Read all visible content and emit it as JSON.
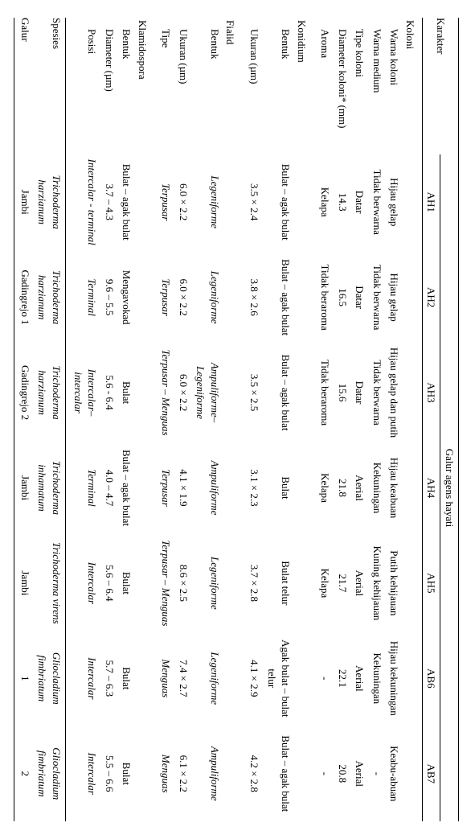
{
  "header": {
    "karakter": "Karakter",
    "group": "Galur agens hayati",
    "cols": [
      "AH1",
      "AH2",
      "AH3",
      "AH4",
      "AH5",
      "AB6",
      "AB7"
    ]
  },
  "sections": {
    "koloni": "Koloni",
    "konidium": "Konidium",
    "fialid": "Fialid",
    "klamidospora": "Klamidospora"
  },
  "rows": {
    "warna_koloni": {
      "label": "Warna koloni",
      "v": [
        "Hijau gelap",
        "Hijau gelap",
        "Hijau gelap dan putih",
        "Hijau keabuan",
        "Putih kehijauan",
        "Hijau kekuningan",
        "Keabu-abuan"
      ]
    },
    "warna_medium": {
      "label": "Warna medium",
      "v": [
        "Tidak berwarna",
        "Tidak berwarna",
        "Tidak berwarna",
        "Kekuningan",
        "Kuning kehijauan",
        "Kekuningan",
        "-"
      ]
    },
    "tipe_koloni": {
      "label": "Tipe koloni",
      "v": [
        "Datar",
        "Datar",
        "Datar",
        "Aerial",
        "Aerial",
        "Aerial",
        "Aerial"
      ]
    },
    "diameter_koloni": {
      "label": "Diameter koloni* (mm)",
      "v": [
        "14.3",
        "16.5",
        "15.6",
        "21.8",
        "21.7",
        "22.1",
        "20.8"
      ]
    },
    "aroma": {
      "label": "Aroma",
      "v": [
        "Kelapa",
        "Tidak beraroma",
        "Tidak beraroma",
        "Kelapa",
        "Kelapa",
        "-",
        "-"
      ]
    },
    "konidium_bentuk": {
      "label": "Bentuk",
      "v": [
        "Bulat – agak bulat",
        "Bulat – agak bulat",
        "Bulat – agak bulat",
        "Bulat",
        "Bulat telur",
        "Agak bulat – bulat telur",
        "Bulat – agak bulat"
      ]
    },
    "konidium_ukuran": {
      "label": "Ukuran (µm)",
      "v": [
        "3.5 × 2.4",
        "3.8 × 2.6",
        "3.5 × 2.5",
        "3.1 × 2.3",
        "3.7 × 2.8",
        "4.1 × 2.9",
        "4.2 × 2.8"
      ]
    },
    "fialid_bentuk": {
      "label": "Bentuk",
      "italic": true,
      "v": [
        "Legeniforme",
        "Legeniforme",
        "Ampuliforme– Legeniforme",
        "Ampuliforme",
        "Legeniforme",
        "Legeniforme",
        "Ampuliforme"
      ]
    },
    "fialid_ukuran": {
      "label": "Ukuran (µm)",
      "v": [
        "6.0 × 2.2",
        "6.0 × 2.2",
        "6.0 × 2.2",
        "4.1 × 1.9",
        "8.6 × 2.5",
        "7.4 × 2.7",
        "6.1 × 2.2"
      ]
    },
    "fialid_tipe": {
      "label": "Tipe",
      "italic": true,
      "v": [
        "Terpusar",
        "Terpusar",
        "Terpusar – Menguas",
        "Terpusar",
        "Terpusar – Menguas",
        "Menguas",
        "Menguas"
      ]
    },
    "klam_bentuk": {
      "label": "Bentuk",
      "v": [
        "Bulat – agak bulat",
        "Mengavokad",
        "Bulat",
        "Bulat – agak bulat",
        "Bulat",
        "Bulat",
        "Bulat"
      ]
    },
    "klam_diameter": {
      "label": "Diameter (µm)",
      "v": [
        "3.7 – 4.3",
        "9.6 – 5.5",
        "5.6 - 6.4",
        "4.0 – 4.7",
        "5.6 – 6.4",
        "5.7 – 6.3",
        "5.5 – 6.6"
      ]
    },
    "klam_posisi": {
      "label": "Posisi",
      "italic": true,
      "v": [
        "Intercalar - terminal",
        "Terminal",
        "Intercalar– intercalar",
        "Terminal",
        "Intercalar",
        "Intercalar",
        "Intercalar"
      ]
    },
    "spesies": {
      "label": "Spesies",
      "italic": true,
      "v": [
        "Trichoderma harzianum",
        "Trichoderma harzianum",
        "Trichoderma harzianum",
        "Trichoderma inhamatum",
        "Trichoderma virens",
        "Gliocladium fimbriatum",
        "Gliocladium fimbriatum"
      ]
    },
    "galur": {
      "label": "Galur",
      "v": [
        "Jambi",
        "Gadingrejo 1",
        "Gadingrejo 2",
        "Jambi",
        "Jambi",
        "1",
        "2"
      ]
    }
  }
}
